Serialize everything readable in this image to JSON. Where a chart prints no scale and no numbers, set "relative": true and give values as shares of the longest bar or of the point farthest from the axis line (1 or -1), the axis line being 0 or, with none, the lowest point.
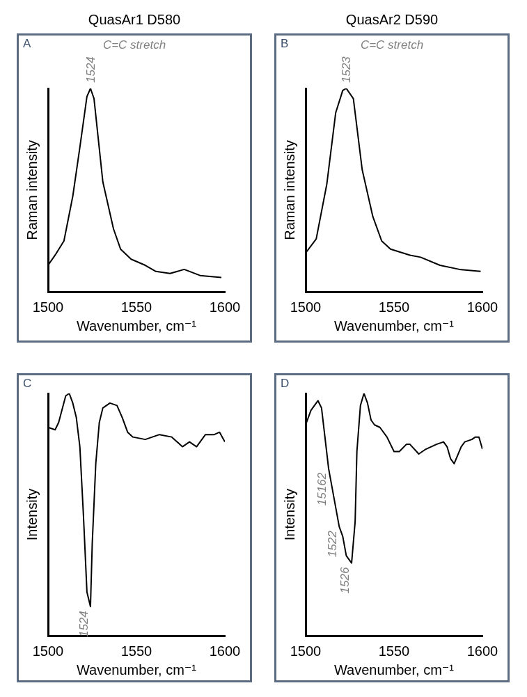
{
  "chart_data": [
    {
      "type": "line",
      "title": "QuasAr1 D580",
      "subtitle": "C=C stretch",
      "xlabel": "Wavenumber, cm⁻¹",
      "ylabel": "Raman intensity",
      "relative": true,
      "marker": "none",
      "xlim": [
        1500,
        1600
      ],
      "xticks": [
        1500,
        1550,
        1600
      ],
      "annotations": [
        "A",
        {
          "text": "1524",
          "x": 1524,
          "y": 1.0
        }
      ],
      "series": [
        {
          "color": "#000000",
          "x": [
            1500,
            1504,
            1509,
            1514,
            1518,
            1522,
            1524,
            1526,
            1531,
            1537,
            1541,
            1547,
            1555,
            1561,
            1569,
            1577,
            1586,
            1598
          ],
          "values": [
            0.13,
            0.18,
            0.25,
            0.47,
            0.71,
            0.96,
            1.0,
            0.95,
            0.54,
            0.31,
            0.21,
            0.16,
            0.13,
            0.1,
            0.09,
            0.11,
            0.08,
            0.07
          ]
        }
      ]
    },
    {
      "type": "line",
      "title": "QuasAr2 D590",
      "subtitle": "C=C stretch",
      "xlabel": "Wavenumber, cm⁻¹",
      "ylabel": "Raman intensity",
      "relative": true,
      "marker": "none",
      "xlim": [
        1500,
        1600
      ],
      "xticks": [
        1500,
        1550,
        1600
      ],
      "annotations": [
        "B",
        {
          "text": "1523",
          "x": 1523,
          "y": 1.0
        }
      ],
      "series": [
        {
          "color": "#000000",
          "x": [
            1500,
            1506,
            1512,
            1517,
            1521,
            1523,
            1527,
            1532,
            1538,
            1543,
            1548,
            1559,
            1565,
            1576,
            1587,
            1599
          ],
          "values": [
            0.19,
            0.26,
            0.53,
            0.88,
            0.99,
            1.0,
            0.95,
            0.6,
            0.37,
            0.25,
            0.21,
            0.18,
            0.17,
            0.13,
            0.11,
            0.1
          ]
        }
      ]
    },
    {
      "type": "line",
      "xlabel": "Wavenumber, cm⁻¹",
      "ylabel": "Intensity",
      "relative": true,
      "marker": "none",
      "xlim": [
        1500,
        1600
      ],
      "xticks": [
        1500,
        1550,
        1600
      ],
      "annotations": [
        "C",
        {
          "text": "1524",
          "x": 1524,
          "y": 0.12
        }
      ],
      "series": [
        {
          "color": "#000000",
          "x": [
            1500,
            1504,
            1506,
            1510,
            1512,
            1514,
            1516,
            1518,
            1520,
            1522,
            1524,
            1525,
            1527,
            1529,
            1531,
            1535,
            1539,
            1542,
            1545,
            1548,
            1555,
            1563,
            1570,
            1576,
            1580,
            1584,
            1589,
            1594,
            1597,
            1600
          ],
          "values": [
            0.86,
            0.85,
            0.88,
            0.99,
            1.0,
            0.96,
            0.9,
            0.78,
            0.5,
            0.18,
            0.12,
            0.38,
            0.71,
            0.88,
            0.94,
            0.96,
            0.95,
            0.9,
            0.84,
            0.82,
            0.81,
            0.83,
            0.82,
            0.78,
            0.8,
            0.78,
            0.83,
            0.83,
            0.84,
            0.8
          ]
        }
      ]
    },
    {
      "type": "line",
      "xlabel": "Wavenumber, cm⁻¹",
      "ylabel": "Intensity",
      "relative": true,
      "marker": "none",
      "xlim": [
        1500,
        1600
      ],
      "xticks": [
        1500,
        1550,
        1600
      ],
      "annotations": [
        "D",
        {
          "text": "15162",
          "x": 1513,
          "y": 0.69
        },
        {
          "text": "1522",
          "x": 1519,
          "y": 0.45
        },
        {
          "text": "1526",
          "x": 1526,
          "y": 0.3
        }
      ],
      "series": [
        {
          "color": "#000000",
          "x": [
            1500,
            1503,
            1507,
            1509,
            1513,
            1516,
            1519,
            1521,
            1523,
            1526,
            1528,
            1529,
            1531,
            1533,
            1535,
            1537,
            1539,
            1542,
            1546,
            1550,
            1553,
            1557,
            1559,
            1564,
            1568,
            1574,
            1578,
            1580,
            1582,
            1584,
            1588,
            1590,
            1594,
            1596,
            1598,
            1600
          ],
          "values": [
            0.87,
            0.93,
            0.97,
            0.94,
            0.69,
            0.57,
            0.45,
            0.41,
            0.33,
            0.3,
            0.47,
            0.76,
            0.95,
            1.0,
            0.96,
            0.89,
            0.87,
            0.86,
            0.82,
            0.76,
            0.76,
            0.79,
            0.79,
            0.75,
            0.77,
            0.79,
            0.8,
            0.78,
            0.73,
            0.71,
            0.78,
            0.8,
            0.81,
            0.82,
            0.82,
            0.77
          ]
        }
      ]
    }
  ]
}
